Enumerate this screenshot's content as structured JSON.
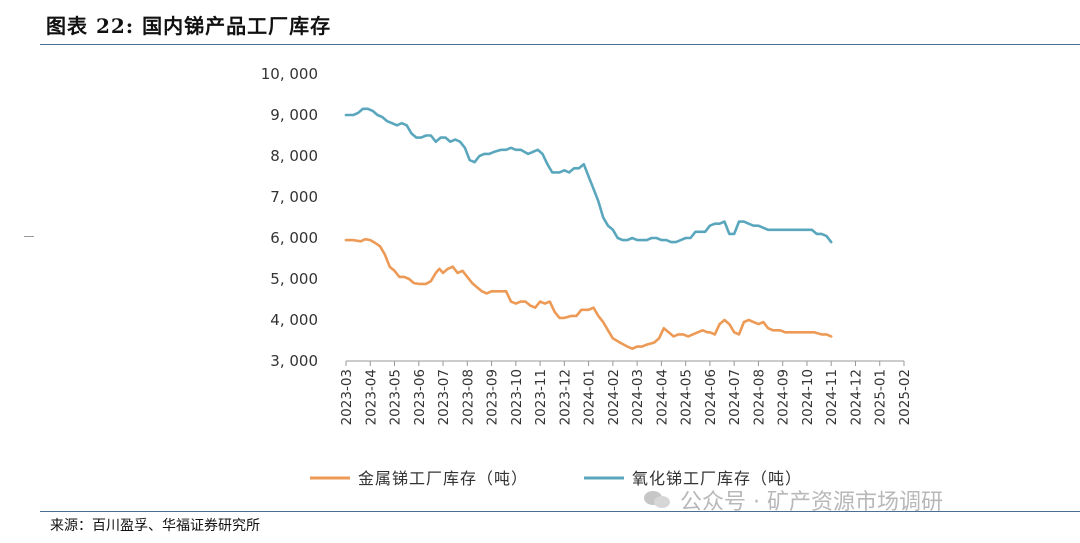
{
  "header": {
    "title": "图表 22:  国内锑产品工厂库存"
  },
  "footer": {
    "source": "来源：百川盈孚、华福证券研究所"
  },
  "watermark": {
    "text": "公众号 · 矿产资源市场调研"
  },
  "colors": {
    "metal": "#ec9a55",
    "oxide": "#5aa7bd",
    "rule": "#4a6f95",
    "axis": "#999999"
  },
  "chart_data": {
    "type": "line",
    "title": "",
    "xlabel": "",
    "ylabel": "",
    "ylim": [
      3000,
      10000
    ],
    "yticks": [
      3000,
      4000,
      5000,
      6000,
      7000,
      8000,
      9000,
      10000
    ],
    "ytick_labels": [
      "3, 000",
      "4, 000",
      "5, 000",
      "6, 000",
      "7, 000",
      "8, 000",
      "9, 000",
      "10, 000"
    ],
    "categories": [
      "2023-03",
      "2023-04",
      "2023-05",
      "2023-06",
      "2023-07",
      "2023-08",
      "2023-09",
      "2023-10",
      "2023-11",
      "2023-12",
      "2024-01",
      "2024-02",
      "2024-03",
      "2024-04",
      "2024-05",
      "2024-06",
      "2024-07",
      "2024-08",
      "2024-09",
      "2024-10",
      "2024-11",
      "2024-12",
      "2025-01",
      "2025-02"
    ],
    "grid": false,
    "legend": "bottom",
    "series": [
      {
        "name": "金属锑工厂库存（吨）",
        "color": "#ec9a55",
        "points": [
          [
            0,
            5950
          ],
          [
            0.3,
            5950
          ],
          [
            0.6,
            5920
          ],
          [
            0.8,
            5970
          ],
          [
            1.0,
            5950
          ],
          [
            1.2,
            5880
          ],
          [
            1.4,
            5800
          ],
          [
            1.6,
            5600
          ],
          [
            1.8,
            5300
          ],
          [
            2.0,
            5200
          ],
          [
            2.2,
            5050
          ],
          [
            2.4,
            5050
          ],
          [
            2.6,
            5000
          ],
          [
            2.8,
            4900
          ],
          [
            3.0,
            4880
          ],
          [
            3.3,
            4880
          ],
          [
            3.5,
            4950
          ],
          [
            3.7,
            5150
          ],
          [
            3.85,
            5250
          ],
          [
            4.0,
            5150
          ],
          [
            4.2,
            5250
          ],
          [
            4.4,
            5300
          ],
          [
            4.6,
            5150
          ],
          [
            4.8,
            5200
          ],
          [
            5.0,
            5050
          ],
          [
            5.2,
            4900
          ],
          [
            5.4,
            4800
          ],
          [
            5.6,
            4700
          ],
          [
            5.8,
            4650
          ],
          [
            6.0,
            4700
          ],
          [
            6.3,
            4700
          ],
          [
            6.6,
            4700
          ],
          [
            6.8,
            4450
          ],
          [
            7.0,
            4400
          ],
          [
            7.2,
            4450
          ],
          [
            7.4,
            4450
          ],
          [
            7.6,
            4350
          ],
          [
            7.8,
            4300
          ],
          [
            8.0,
            4450
          ],
          [
            8.2,
            4400
          ],
          [
            8.4,
            4450
          ],
          [
            8.6,
            4200
          ],
          [
            8.8,
            4050
          ],
          [
            9.0,
            4050
          ],
          [
            9.3,
            4100
          ],
          [
            9.5,
            4100
          ],
          [
            9.7,
            4250
          ],
          [
            10.0,
            4250
          ],
          [
            10.2,
            4300
          ],
          [
            10.4,
            4100
          ],
          [
            10.6,
            3950
          ],
          [
            10.8,
            3750
          ],
          [
            11.0,
            3550
          ],
          [
            11.3,
            3450
          ],
          [
            11.6,
            3350
          ],
          [
            11.8,
            3300
          ],
          [
            12.0,
            3350
          ],
          [
            12.2,
            3350
          ],
          [
            12.4,
            3400
          ],
          [
            12.7,
            3450
          ],
          [
            12.9,
            3550
          ],
          [
            13.1,
            3800
          ],
          [
            13.3,
            3700
          ],
          [
            13.5,
            3600
          ],
          [
            13.7,
            3650
          ],
          [
            13.9,
            3650
          ],
          [
            14.1,
            3600
          ],
          [
            14.3,
            3650
          ],
          [
            14.5,
            3700
          ],
          [
            14.7,
            3750
          ],
          [
            14.9,
            3700
          ],
          [
            15.0,
            3700
          ],
          [
            15.2,
            3650
          ],
          [
            15.4,
            3900
          ],
          [
            15.6,
            4000
          ],
          [
            15.8,
            3900
          ],
          [
            16.0,
            3700
          ],
          [
            16.2,
            3650
          ],
          [
            16.4,
            3950
          ],
          [
            16.6,
            4000
          ],
          [
            16.8,
            3950
          ],
          [
            17.0,
            3900
          ],
          [
            17.2,
            3950
          ],
          [
            17.4,
            3800
          ],
          [
            17.6,
            3750
          ],
          [
            17.9,
            3750
          ],
          [
            18.1,
            3700
          ],
          [
            18.4,
            3700
          ],
          [
            18.7,
            3700
          ],
          [
            19.0,
            3700
          ],
          [
            19.3,
            3700
          ],
          [
            19.6,
            3650
          ],
          [
            19.8,
            3650
          ],
          [
            20.0,
            3600
          ]
        ]
      },
      {
        "name": "氧化锑工厂库存（吨）",
        "color": "#5aa7bd",
        "points": [
          [
            0,
            9000
          ],
          [
            0.3,
            9000
          ],
          [
            0.5,
            9050
          ],
          [
            0.7,
            9150
          ],
          [
            0.9,
            9150
          ],
          [
            1.1,
            9100
          ],
          [
            1.3,
            9000
          ],
          [
            1.5,
            8950
          ],
          [
            1.7,
            8850
          ],
          [
            1.9,
            8800
          ],
          [
            2.1,
            8750
          ],
          [
            2.3,
            8800
          ],
          [
            2.5,
            8750
          ],
          [
            2.7,
            8550
          ],
          [
            2.9,
            8450
          ],
          [
            3.1,
            8450
          ],
          [
            3.3,
            8500
          ],
          [
            3.5,
            8500
          ],
          [
            3.7,
            8350
          ],
          [
            3.9,
            8450
          ],
          [
            4.1,
            8450
          ],
          [
            4.3,
            8350
          ],
          [
            4.5,
            8400
          ],
          [
            4.7,
            8350
          ],
          [
            4.9,
            8200
          ],
          [
            5.1,
            7900
          ],
          [
            5.3,
            7850
          ],
          [
            5.5,
            8000
          ],
          [
            5.7,
            8050
          ],
          [
            5.9,
            8050
          ],
          [
            6.1,
            8100
          ],
          [
            6.4,
            8150
          ],
          [
            6.6,
            8150
          ],
          [
            6.8,
            8200
          ],
          [
            7.0,
            8150
          ],
          [
            7.2,
            8150
          ],
          [
            7.5,
            8050
          ],
          [
            7.7,
            8100
          ],
          [
            7.9,
            8150
          ],
          [
            8.1,
            8050
          ],
          [
            8.3,
            7800
          ],
          [
            8.5,
            7600
          ],
          [
            8.8,
            7600
          ],
          [
            9.0,
            7650
          ],
          [
            9.2,
            7600
          ],
          [
            9.4,
            7700
          ],
          [
            9.6,
            7700
          ],
          [
            9.8,
            7800
          ],
          [
            10.0,
            7500
          ],
          [
            10.2,
            7200
          ],
          [
            10.4,
            6900
          ],
          [
            10.6,
            6500
          ],
          [
            10.8,
            6300
          ],
          [
            11.0,
            6200
          ],
          [
            11.2,
            6000
          ],
          [
            11.4,
            5950
          ],
          [
            11.6,
            5950
          ],
          [
            11.8,
            6000
          ],
          [
            12.0,
            5950
          ],
          [
            12.2,
            5950
          ],
          [
            12.4,
            5950
          ],
          [
            12.6,
            6000
          ],
          [
            12.8,
            6000
          ],
          [
            13.0,
            5950
          ],
          [
            13.2,
            5950
          ],
          [
            13.4,
            5900
          ],
          [
            13.6,
            5900
          ],
          [
            13.8,
            5950
          ],
          [
            14.0,
            6000
          ],
          [
            14.2,
            6000
          ],
          [
            14.4,
            6150
          ],
          [
            14.6,
            6150
          ],
          [
            14.8,
            6150
          ],
          [
            15.0,
            6300
          ],
          [
            15.2,
            6350
          ],
          [
            15.4,
            6350
          ],
          [
            15.6,
            6400
          ],
          [
            15.8,
            6100
          ],
          [
            16.0,
            6100
          ],
          [
            16.2,
            6400
          ],
          [
            16.4,
            6400
          ],
          [
            16.6,
            6350
          ],
          [
            16.8,
            6300
          ],
          [
            17.0,
            6300
          ],
          [
            17.2,
            6250
          ],
          [
            17.4,
            6200
          ],
          [
            17.7,
            6200
          ],
          [
            18.0,
            6200
          ],
          [
            18.3,
            6200
          ],
          [
            18.6,
            6200
          ],
          [
            18.9,
            6200
          ],
          [
            19.2,
            6200
          ],
          [
            19.4,
            6100
          ],
          [
            19.6,
            6100
          ],
          [
            19.8,
            6050
          ],
          [
            20.0,
            5900
          ]
        ]
      }
    ]
  }
}
